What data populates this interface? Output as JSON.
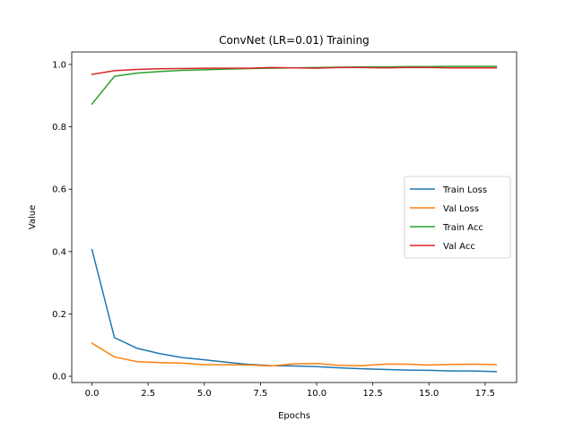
{
  "chart_data": {
    "type": "line",
    "title": "ConvNet (LR=0.01) Training",
    "xlabel": "Epochs",
    "ylabel": "Value",
    "xlim": [
      -0.9,
      18.9
    ],
    "ylim": [
      -0.02,
      1.04
    ],
    "xticks": [
      0,
      2.5,
      5,
      7.5,
      10,
      12.5,
      15,
      17.5
    ],
    "xtick_labels": [
      "0.0",
      "2.5",
      "5.0",
      "7.5",
      "10.0",
      "12.5",
      "15.0",
      "17.5"
    ],
    "yticks": [
      0,
      0.2,
      0.4,
      0.6,
      0.8,
      1.0
    ],
    "ytick_labels": [
      "0.0",
      "0.2",
      "0.4",
      "0.6",
      "0.8",
      "1.0"
    ],
    "grid": false,
    "legend_position": "center-right",
    "x": [
      0,
      1,
      2,
      3,
      4,
      5,
      6,
      7,
      8,
      9,
      10,
      11,
      12,
      13,
      14,
      15,
      16,
      17,
      18
    ],
    "series": [
      {
        "name": "Train Loss",
        "color": "#1f77b4",
        "values": [
          0.406,
          0.124,
          0.09,
          0.073,
          0.06,
          0.053,
          0.045,
          0.038,
          0.034,
          0.033,
          0.031,
          0.027,
          0.024,
          0.022,
          0.02,
          0.019,
          0.017,
          0.017,
          0.015
        ]
      },
      {
        "name": "Val Loss",
        "color": "#ff7f0e",
        "values": [
          0.106,
          0.062,
          0.047,
          0.044,
          0.042,
          0.037,
          0.037,
          0.036,
          0.033,
          0.04,
          0.041,
          0.035,
          0.034,
          0.039,
          0.039,
          0.036,
          0.038,
          0.039,
          0.037
        ]
      },
      {
        "name": "Train Acc",
        "color": "#2ca02c",
        "values": [
          0.873,
          0.962,
          0.972,
          0.977,
          0.981,
          0.983,
          0.985,
          0.987,
          0.988,
          0.989,
          0.99,
          0.991,
          0.992,
          0.992,
          0.993,
          0.993,
          0.994,
          0.994,
          0.994
        ]
      },
      {
        "name": "Val Acc",
        "color": "#d62728",
        "values": [
          0.968,
          0.98,
          0.984,
          0.986,
          0.987,
          0.988,
          0.988,
          0.988,
          0.99,
          0.989,
          0.988,
          0.99,
          0.99,
          0.989,
          0.99,
          0.99,
          0.989,
          0.989,
          0.989
        ]
      }
    ]
  }
}
